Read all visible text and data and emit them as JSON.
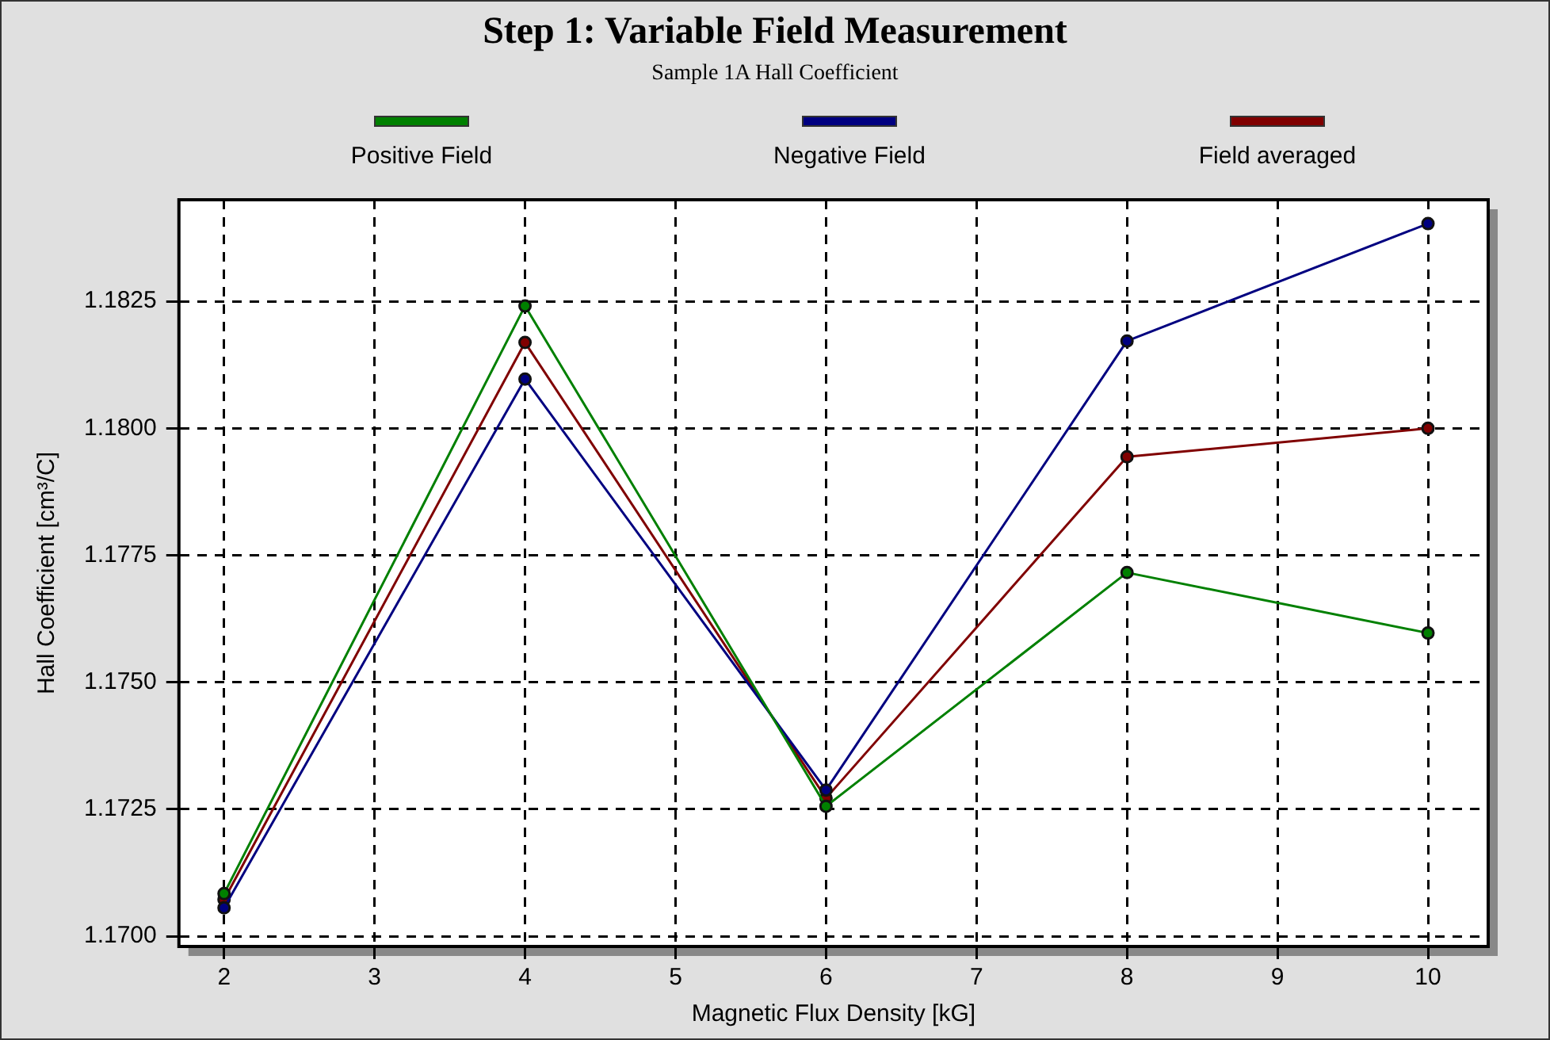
{
  "chart_data": {
    "type": "line",
    "title": "Step 1: Variable Field Measurement",
    "subtitle": "Sample 1A Hall Coefficient",
    "xlabel": "Magnetic Flux Density [kG]",
    "ylabel": "Hall Coefficient [cm³/C]",
    "x": [
      2,
      4,
      6,
      8,
      10
    ],
    "series": [
      {
        "name": "Positive Field",
        "color": "#008000",
        "values": [
          1.17084,
          1.18241,
          1.17256,
          1.17716,
          1.17597
        ]
      },
      {
        "name": "Negative Field",
        "color": "#000080",
        "values": [
          1.17056,
          1.18097,
          1.17288,
          1.18172,
          1.18403
        ]
      },
      {
        "name": "Field averaged",
        "color": "#800000",
        "values": [
          1.17072,
          1.18169,
          1.17272,
          1.17944,
          1.18
        ]
      }
    ],
    "xlim": [
      1.7,
      10.4
    ],
    "xticks": [
      2,
      3,
      4,
      5,
      6,
      7,
      8,
      9,
      10
    ],
    "ylim": [
      1.1698,
      1.1845
    ],
    "yticks": [
      {
        "value": 1.17,
        "label": "1.1700"
      },
      {
        "value": 1.1725,
        "label": "1.1725"
      },
      {
        "value": 1.175,
        "label": "1.1750"
      },
      {
        "value": 1.1775,
        "label": "1.1775"
      },
      {
        "value": 1.18,
        "label": "1.1800"
      },
      {
        "value": 1.1825,
        "label": "1.1825"
      }
    ],
    "grid": true,
    "legend": "top",
    "marker": "circle",
    "line_style": "solid"
  }
}
